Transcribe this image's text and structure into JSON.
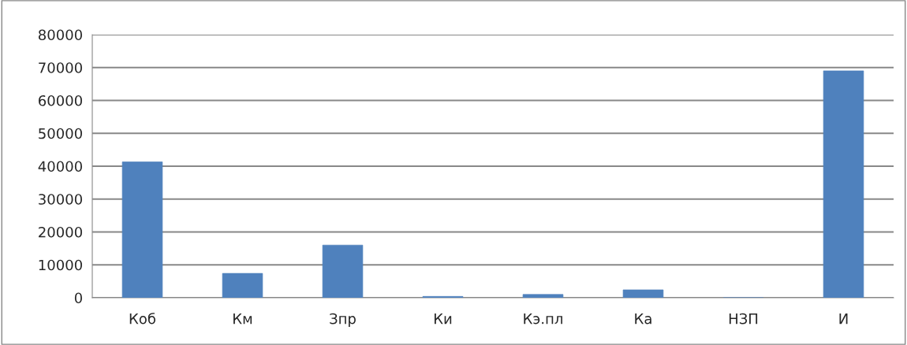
{
  "chart_data": {
    "type": "bar",
    "categories": [
      "Коб",
      "Км",
      "Зпр",
      "Ки",
      "Кэ.пл",
      "Ка",
      "НЗП",
      "И"
    ],
    "values": [
      41300,
      7400,
      16000,
      400,
      1000,
      2400,
      0,
      69000
    ],
    "color": "#4f81bd",
    "ylim": [
      0,
      80000
    ],
    "yticks": [
      0,
      10000,
      20000,
      30000,
      40000,
      50000,
      60000,
      70000,
      80000
    ],
    "grid": "y",
    "legend": false
  }
}
